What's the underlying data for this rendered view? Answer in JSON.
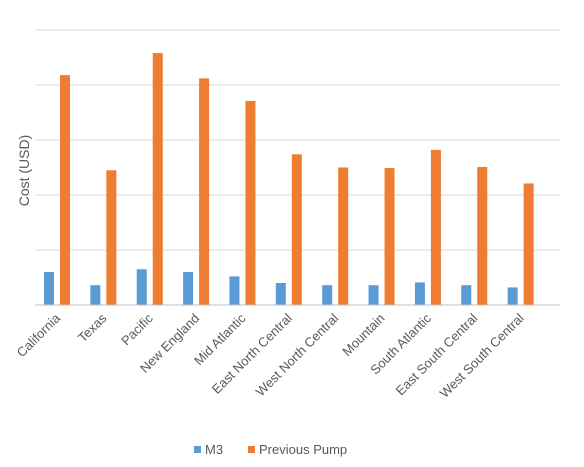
{
  "chart_data": {
    "type": "bar",
    "title": "",
    "xlabel": "",
    "ylabel": "Cost (USD)",
    "ylim": [
      0,
      5000
    ],
    "y_tick_labels_shown": false,
    "grid": true,
    "legend_position": "bottom",
    "categories": [
      "California",
      "Texas",
      "Pacific",
      "New England",
      "Mid Atlantic",
      "East North Central",
      "West North Central",
      "Mountain",
      "South Atlantic",
      "East South Central",
      "West South Central"
    ],
    "series": [
      {
        "name": "M3",
        "color": "#5B9BD5",
        "values": [
          600,
          360,
          650,
          600,
          520,
          400,
          360,
          360,
          410,
          360,
          320
        ]
      },
      {
        "name": "Previous Pump",
        "color": "#ED7D31",
        "values": [
          4180,
          2450,
          4580,
          4120,
          3710,
          2740,
          2500,
          2490,
          2820,
          2510,
          2210
        ]
      }
    ]
  }
}
